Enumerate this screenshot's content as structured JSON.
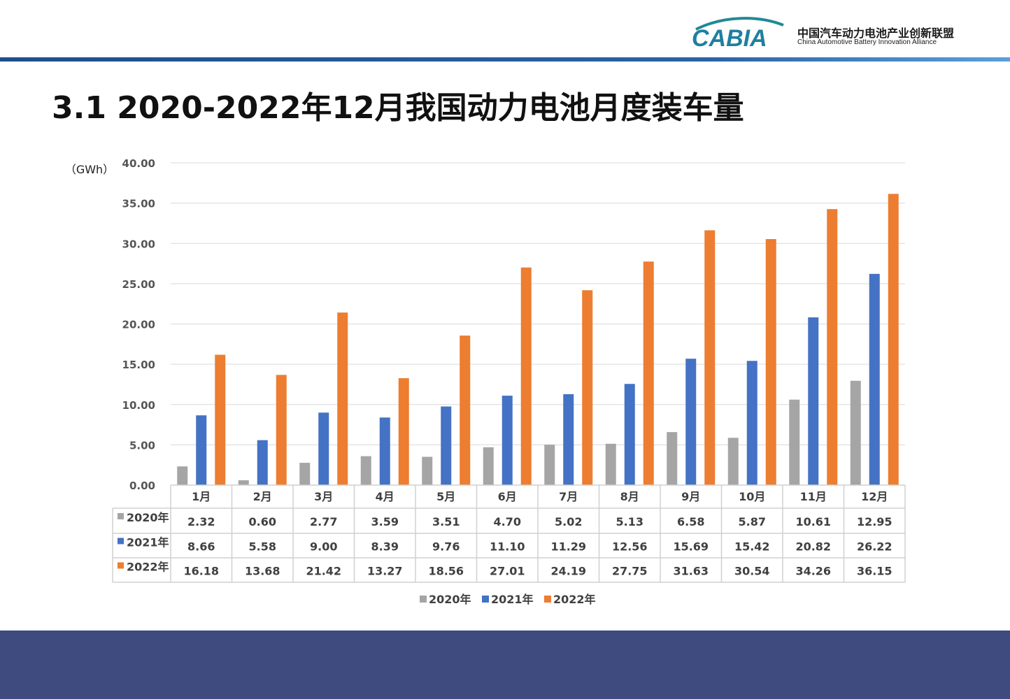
{
  "header": {
    "logo_text": "CABIA",
    "org_cn": "中国汽车动力电池产业创新联盟",
    "org_en": "China Automotive Battery Innovation Alliance"
  },
  "page_title": "3.1 2020-2022年12月我国动力电池月度装车量",
  "colors": {
    "s2020": "#a5a5a5",
    "s2021": "#4472c4",
    "s2022": "#ed7d31",
    "footer": "#3f4b7e",
    "bar_accent": "#1f4e8c"
  },
  "chart_data": {
    "type": "bar",
    "title": "",
    "unit_label": "（GWh）",
    "categories": [
      "1月",
      "2月",
      "3月",
      "4月",
      "5月",
      "6月",
      "7月",
      "8月",
      "9月",
      "10月",
      "11月",
      "12月"
    ],
    "series": [
      {
        "name": "2020年",
        "values": [
          2.32,
          0.6,
          2.77,
          3.59,
          3.51,
          4.7,
          5.02,
          5.13,
          6.58,
          5.87,
          10.61,
          12.95
        ]
      },
      {
        "name": "2021年",
        "values": [
          8.66,
          5.58,
          9.0,
          8.39,
          9.76,
          11.1,
          11.29,
          12.56,
          15.69,
          15.42,
          20.82,
          26.22
        ]
      },
      {
        "name": "2022年",
        "values": [
          16.18,
          13.68,
          21.42,
          13.27,
          18.56,
          27.01,
          24.19,
          27.75,
          31.63,
          30.54,
          34.26,
          36.15
        ]
      }
    ],
    "yticks": [
      "0.00",
      "5.00",
      "10.00",
      "15.00",
      "20.00",
      "25.00",
      "30.00",
      "35.00",
      "40.00"
    ],
    "ylim": [
      0,
      40
    ],
    "grid": true,
    "data_table": true,
    "legend_position": "bottom"
  }
}
